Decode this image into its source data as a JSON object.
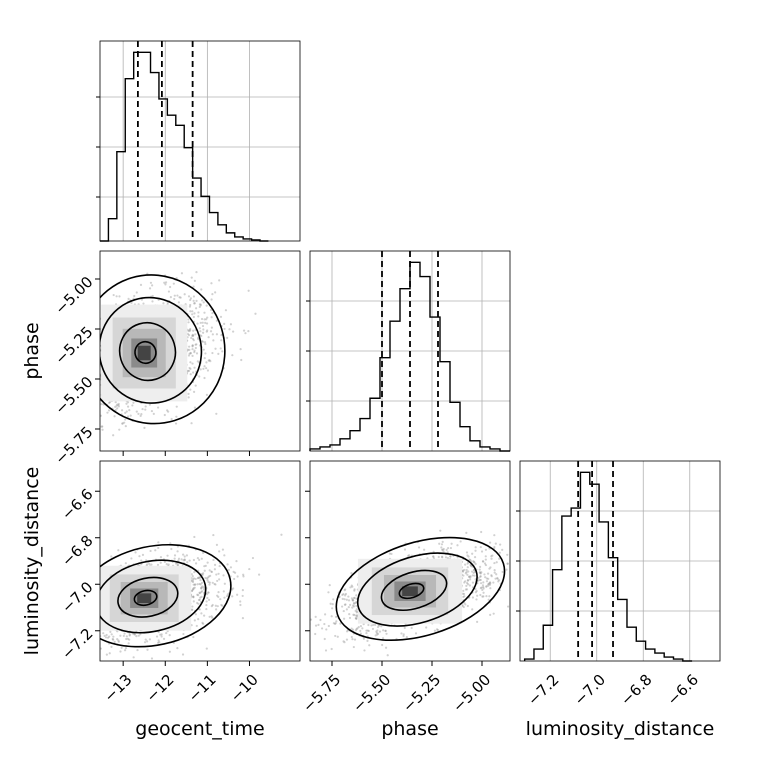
{
  "chart_data": {
    "type": "corner",
    "parameters": [
      {
        "name": "geocent_time",
        "label": "geocent_time",
        "range": [
          -13.55,
          -8.8
        ],
        "ticks": [
          -13,
          -12,
          -11,
          -10
        ],
        "tick_labels": [
          "−13",
          "−12",
          "−11",
          "−10"
        ],
        "quantiles": [
          -12.65,
          -12.08,
          -11.35
        ]
      },
      {
        "name": "phase",
        "label": "phase",
        "range": [
          -5.86,
          -4.86
        ],
        "ticks": [
          -5.75,
          -5.5,
          -5.25,
          -5.0
        ],
        "tick_labels": [
          "−5.75",
          "−5.50",
          "−5.25",
          "−5.00"
        ],
        "quantiles": [
          -5.5,
          -5.36,
          -5.22
        ]
      },
      {
        "name": "luminosity_distance",
        "label": "luminosity_distance",
        "range": [
          -7.33,
          -6.47
        ],
        "ticks": [
          -7.2,
          -7.0,
          -6.8,
          -6.6
        ],
        "tick_labels": [
          "−7.2",
          "−7.0",
          "−6.8",
          "−6.6"
        ],
        "quantiles": [
          -7.08,
          -7.02,
          -6.93
        ]
      }
    ],
    "histograms": [
      {
        "param": "geocent_time",
        "bin_edges": [
          -13.55,
          -13.35,
          -13.15,
          -12.95,
          -12.75,
          -12.55,
          -12.35,
          -12.15,
          -11.95,
          -11.75,
          -11.55,
          -11.35,
          -11.15,
          -10.95,
          -10.75,
          -10.55,
          -10.35,
          -10.15,
          -9.95,
          -9.75,
          -9.55
        ],
        "counts": [
          0,
          11,
          44,
          80,
          93,
          93,
          83,
          70,
          62,
          57,
          46,
          31,
          22,
          14,
          8,
          4,
          2,
          1,
          0.5,
          0
        ]
      },
      {
        "param": "phase",
        "bin_edges": [
          -5.86,
          -5.81,
          -5.76,
          -5.71,
          -5.66,
          -5.61,
          -5.56,
          -5.51,
          -5.46,
          -5.41,
          -5.36,
          -5.31,
          -5.26,
          -5.21,
          -5.16,
          -5.11,
          -5.06,
          -5.01,
          -4.96,
          -4.91,
          -4.86
        ],
        "counts": [
          1,
          2,
          3,
          6,
          10,
          16,
          26,
          46,
          64,
          80,
          93,
          86,
          66,
          44,
          24,
          12,
          5,
          2,
          1,
          0
        ]
      },
      {
        "param": "luminosity_distance",
        "bin_edges": [
          -7.31,
          -7.27,
          -7.23,
          -7.19,
          -7.15,
          -7.11,
          -7.07,
          -7.03,
          -6.99,
          -6.95,
          -6.91,
          -6.87,
          -6.83,
          -6.79,
          -6.75,
          -6.71,
          -6.67,
          -6.63,
          -6.59
        ],
        "counts": [
          1,
          6,
          18,
          46,
          73,
          77,
          95,
          89,
          70,
          52,
          31,
          17,
          10,
          6,
          4,
          2,
          1,
          0
        ]
      }
    ],
    "pairs": [
      {
        "x": "geocent_time",
        "y": "phase",
        "mode": [
          -12.5,
          -5.37
        ],
        "sd": [
          0.55,
          0.13
        ],
        "rho": 0.3
      },
      {
        "x": "geocent_time",
        "y": "luminosity_distance",
        "mode": [
          -12.5,
          -7.06
        ],
        "sd": [
          0.6,
          0.075
        ],
        "rho": 0.35
      },
      {
        "x": "phase",
        "y": "luminosity_distance",
        "mode": [
          -5.36,
          -7.03
        ],
        "sd": [
          0.14,
          0.075
        ],
        "rho": 0.55
      }
    ],
    "grid": true
  },
  "style": {
    "line_color": "#000000",
    "grid_color": "#b0b0b0",
    "scatter_color": "#9a9a9a"
  }
}
